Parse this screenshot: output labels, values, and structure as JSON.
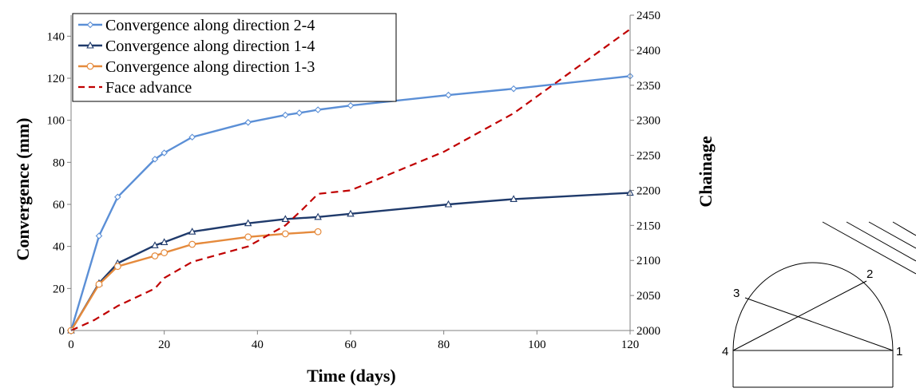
{
  "chart_data": {
    "type": "line",
    "xlabel": "Time (days)",
    "ylabel": "Convergence (mm)",
    "ylabel_right": "Chainage",
    "xlim": [
      0,
      120
    ],
    "ylim": [
      0,
      150
    ],
    "ylim_right": [
      2000,
      2450
    ],
    "xticks": [
      "0",
      "20",
      "40",
      "60",
      "80",
      "100",
      "120"
    ],
    "yticks": [
      "0",
      "20",
      "40",
      "60",
      "80",
      "100",
      "120",
      "140"
    ],
    "yticks_right": [
      "2000",
      "2050",
      "2100",
      "2150",
      "2200",
      "2250",
      "2300",
      "2350",
      "2400",
      "2450"
    ],
    "grid": false,
    "legend_position": "top-left",
    "series": [
      {
        "name": "Convergence along direction 2-4",
        "color": "#5b8fd6",
        "marker": "diamond",
        "axis": "left",
        "x": [
          0,
          6,
          10,
          18,
          20,
          26,
          38,
          46,
          49,
          53,
          60,
          81,
          95,
          120
        ],
        "y": [
          0,
          45,
          63.5,
          81.5,
          84.5,
          92,
          99,
          102.5,
          103.5,
          105,
          107,
          112,
          115,
          121
        ]
      },
      {
        "name": "Convergence along direction 1-4",
        "color": "#1f3a6b",
        "marker": "triangle",
        "axis": "left",
        "x": [
          0,
          6,
          10,
          18,
          20,
          26,
          38,
          46,
          53,
          60,
          81,
          95,
          120
        ],
        "y": [
          0,
          22.5,
          32,
          40.5,
          42,
          47,
          51,
          53,
          54,
          55.5,
          60,
          62.5,
          65.5
        ]
      },
      {
        "name": "Convergence along direction 1-3",
        "color": "#e58a3c",
        "marker": "circle",
        "axis": "left",
        "x": [
          0,
          6,
          10,
          18,
          20,
          26,
          38,
          46,
          53
        ],
        "y": [
          0,
          22,
          30.5,
          35.5,
          37,
          41,
          44.5,
          46,
          47
        ]
      },
      {
        "name": "Face advance",
        "color": "#c00000",
        "marker": "none",
        "dash": true,
        "axis": "right",
        "x": [
          0,
          5,
          10,
          18,
          20,
          26,
          38,
          46,
          50,
          53,
          60,
          80,
          95,
          120
        ],
        "y": [
          2000,
          2015,
          2035,
          2060,
          2075,
          2098,
          2120,
          2150,
          2175,
          2195,
          2200,
          2255,
          2310,
          2430
        ]
      }
    ]
  },
  "diagram": {
    "labels": [
      "1",
      "2",
      "3",
      "4"
    ]
  }
}
